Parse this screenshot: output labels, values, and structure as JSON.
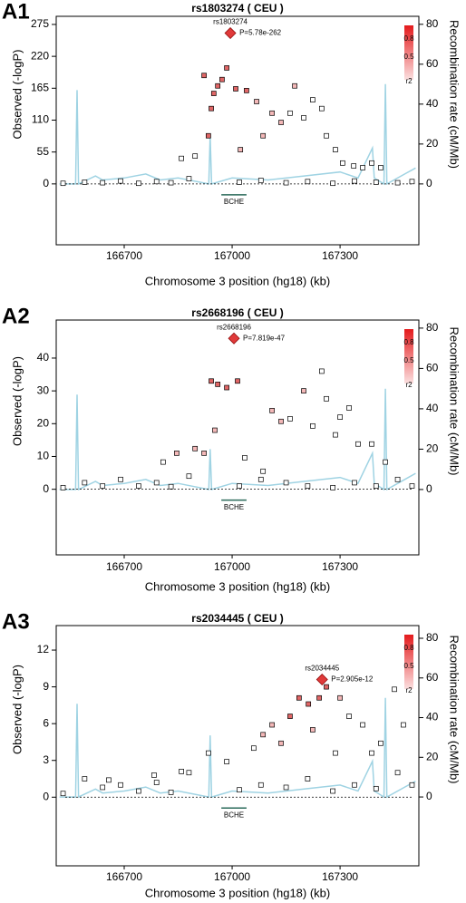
{
  "chart_data": [
    {
      "type": "scatter",
      "label": "A1",
      "title": "rs1803274 ( CEU )",
      "x_label": "Chromosome 3 position (hg18) (kb)",
      "y_label": "Observed (-logP)",
      "y2_label": "Recombination rate (cM/Mb)",
      "xlim": [
        166511,
        167519
      ],
      "xticks": [
        166700,
        167000,
        167300
      ],
      "ylim": [
        -105,
        289
      ],
      "yticks": [
        0,
        55,
        110,
        165,
        220,
        275
      ],
      "y2lim": [
        -30.5,
        84
      ],
      "y2ticks": [
        0,
        20,
        40,
        60,
        80
      ],
      "top_snp": {
        "name": "rs1803274",
        "p_label": "P=5.78e-262",
        "x": 166995,
        "y": 260,
        "color": "#e03a3a"
      },
      "gene": {
        "name": "BCHE",
        "start": 166970,
        "end": 167040
      },
      "legend": {
        "labels": [
          "0.8",
          "0.5",
          "r2"
        ],
        "colors": [
          "#e41a1c",
          "#fbe0e0"
        ]
      },
      "points": {
        "x": [
          166922,
          166934,
          166942,
          166949,
          166960,
          166972,
          166985,
          167010,
          167023,
          167040,
          167068,
          167086,
          167111,
          167136,
          167161,
          167174,
          167199,
          167224,
          167249,
          167262,
          167287,
          167307,
          167338,
          167363,
          167388,
          167413,
          166859,
          166897,
          166530,
          166590,
          166640,
          166690,
          166740,
          166790,
          166830,
          166880,
          167020,
          167080,
          167150,
          167210,
          167280,
          167340,
          167400,
          167460,
          167500
        ],
        "y": [
          187,
          83,
          130,
          156,
          169,
          180,
          200,
          164,
          59,
          161,
          142,
          83,
          122,
          106,
          122,
          169,
          114,
          145,
          130,
          83,
          59,
          36,
          31,
          28,
          36,
          28,
          44,
          48,
          1,
          3,
          2,
          5,
          1,
          4,
          2,
          9,
          3,
          6,
          2,
          4,
          1,
          5,
          3,
          2,
          4
        ],
        "colors": [
          "#e06666",
          "#e06666",
          "#e06666",
          "#e06666",
          "#e06666",
          "#e06666",
          "#e06666",
          "#e06666",
          "#f4b8b8",
          "#e06666",
          "#f4b8b8",
          "#f4b8b8",
          "#f4b8b8",
          "#f4b8b8",
          "#ffffff",
          "#f4b8b8",
          "#ffffff",
          "#ffffff",
          "#ffffff",
          "#ffffff",
          "#ffffff",
          "#ffffff",
          "#ffffff",
          "#ffffff",
          "#ffffff",
          "#ffffff",
          "#ffffff",
          "#ffffff",
          "#ffffff",
          "#ffffff",
          "#ffffff",
          "#ffffff",
          "#ffffff",
          "#ffffff",
          "#ffffff",
          "#ffffff",
          "#ffffff",
          "#ffffff",
          "#ffffff",
          "#ffffff",
          "#ffffff",
          "#ffffff",
          "#ffffff",
          "#ffffff",
          "#ffffff"
        ]
      },
      "recombination": {
        "axis": "y2",
        "color": "#9fd3e3",
        "x": [
          166520,
          166565,
          166569,
          166573,
          166620,
          166640,
          166700,
          166760,
          166800,
          166850,
          166935,
          166939,
          166943,
          167000,
          167100,
          167200,
          167300,
          167350,
          167390,
          167395,
          167422,
          167426,
          167430,
          167480,
          167510
        ],
        "values": [
          0,
          0,
          47,
          0,
          4,
          2,
          3,
          5,
          2,
          3,
          0,
          24,
          0,
          3,
          2,
          4,
          6,
          3,
          18,
          3,
          0,
          50,
          0,
          5,
          8
        ]
      }
    },
    {
      "type": "scatter",
      "label": "A2",
      "title": "rs2668196 ( CEU )",
      "x_label": "Chromosome 3 position (hg18) (kb)",
      "y_label": "Observed (-logP)",
      "y2_label": "Recombination rate (cM/Mb)",
      "xlim": [
        166511,
        167519
      ],
      "xticks": [
        166700,
        167000,
        167300
      ],
      "ylim": [
        -20,
        51.6
      ],
      "yticks": [
        0,
        10,
        20,
        30,
        40
      ],
      "y2lim": [
        -32.4,
        84
      ],
      "y2ticks": [
        0,
        20,
        40,
        60,
        80
      ],
      "top_snp": {
        "name": "rs2668196",
        "p_label": "P=7.819e-47",
        "x": 167005,
        "y": 46,
        "color": "#e03a3a"
      },
      "gene": {
        "name": "BCHE",
        "start": 166970,
        "end": 167040
      },
      "legend": {
        "labels": [
          "0.8",
          "0.5",
          "r2"
        ],
        "colors": [
          "#e41a1c",
          "#fbe0e0"
        ]
      },
      "points": {
        "x": [
          166942,
          166960,
          167015,
          166985,
          166952,
          166922,
          167111,
          167136,
          167161,
          167199,
          167249,
          167262,
          167300,
          167325,
          167350,
          167388,
          167426,
          166846,
          166897,
          167035,
          167086,
          167224,
          167287,
          166808,
          166530,
          166590,
          166640,
          166690,
          166740,
          166790,
          166830,
          166880,
          167020,
          167080,
          167150,
          167210,
          167280,
          167340,
          167400,
          167460,
          167500
        ],
        "y": [
          33,
          32,
          33,
          31,
          18,
          11,
          24,
          20.7,
          21.5,
          30,
          36,
          27.6,
          22,
          24.8,
          13.8,
          13.8,
          8.3,
          11,
          12.4,
          9.6,
          5.5,
          19.3,
          16.6,
          8.3,
          0.5,
          2,
          1,
          3,
          1,
          2,
          0.8,
          4,
          1,
          3,
          2,
          1,
          0.5,
          2,
          1,
          3,
          1
        ],
        "colors": [
          "#e06666",
          "#e06666",
          "#e06666",
          "#e06666",
          "#f4b8b8",
          "#f4b8b8",
          "#f4b8b8",
          "#f4b8b8",
          "#ffffff",
          "#f4b8b8",
          "#ffffff",
          "#ffffff",
          "#ffffff",
          "#ffffff",
          "#ffffff",
          "#ffffff",
          "#ffffff",
          "#f4b8b8",
          "#f4b8b8",
          "#ffffff",
          "#ffffff",
          "#ffffff",
          "#ffffff",
          "#ffffff",
          "#ffffff",
          "#ffffff",
          "#ffffff",
          "#ffffff",
          "#ffffff",
          "#ffffff",
          "#ffffff",
          "#ffffff",
          "#ffffff",
          "#ffffff",
          "#ffffff",
          "#ffffff",
          "#ffffff",
          "#ffffff",
          "#ffffff",
          "#ffffff",
          "#ffffff"
        ]
      },
      "recombination": {
        "axis": "y2",
        "color": "#9fd3e3",
        "x": [
          166520,
          166565,
          166569,
          166573,
          166620,
          166640,
          166700,
          166760,
          166800,
          166850,
          166935,
          166939,
          166943,
          167000,
          167100,
          167200,
          167300,
          167350,
          167390,
          167395,
          167422,
          167426,
          167430,
          167480,
          167510
        ],
        "values": [
          0,
          0,
          47,
          0,
          4,
          2,
          3,
          5,
          2,
          3,
          0,
          20,
          0,
          3,
          2,
          4,
          6,
          3,
          18,
          3,
          0,
          50,
          0,
          5,
          8
        ]
      }
    },
    {
      "type": "scatter",
      "label": "A3",
      "title": "rs2034445 ( CEU )",
      "x_label": "Chromosome 3 position (hg18) (kb)",
      "y_label": "Observed (-logP)",
      "y2_label": "Recombination rate (cM/Mb)",
      "xlim": [
        166511,
        167519
      ],
      "xticks": [
        166700,
        167000,
        167300
      ],
      "ylim": [
        -5.6,
        14
      ],
      "yticks": [
        0,
        3,
        6,
        9,
        12
      ],
      "y2lim": [
        -34.7,
        86.4
      ],
      "y2ticks": [
        0,
        20,
        40,
        60,
        80
      ],
      "top_snp": {
        "name": "rs2034445",
        "p_label": "P=2.905e-12",
        "x": 167250,
        "y": 9.6,
        "color": "#e03a3a"
      },
      "gene": {
        "name": "BCHE",
        "start": 166970,
        "end": 167040
      },
      "legend": {
        "labels": [
          "0.8",
          "0.5",
          "r2"
        ],
        "colors": [
          "#e41a1c",
          "#fbe0e0"
        ]
      },
      "points": {
        "x": [
          167262,
          167242,
          167212,
          167186,
          167161,
          167111,
          167086,
          167136,
          167224,
          167300,
          167325,
          167363,
          167388,
          167413,
          167451,
          167476,
          166985,
          166934,
          166859,
          166783,
          166657,
          167060,
          167287,
          166530,
          166590,
          166640,
          166690,
          166740,
          166790,
          166830,
          166880,
          167020,
          167080,
          167150,
          167210,
          167280,
          167340,
          167400,
          167460,
          167500
        ],
        "y": [
          9,
          8.1,
          7.6,
          8.1,
          6.6,
          5.9,
          5.1,
          4.4,
          5.5,
          8.1,
          6.6,
          5.9,
          3.6,
          4.4,
          8.8,
          5.9,
          2.9,
          3.6,
          2.1,
          1.8,
          1.4,
          4,
          3.6,
          0.3,
          1.5,
          0.8,
          1,
          0.5,
          1.2,
          0.4,
          2,
          0.6,
          1,
          0.8,
          1.5,
          0.5,
          1,
          0.7,
          2,
          1
        ],
        "colors": [
          "#e06666",
          "#e06666",
          "#e06666",
          "#e06666",
          "#e06666",
          "#f4b8b8",
          "#f4b8b8",
          "#f4b8b8",
          "#f4b8b8",
          "#f4b8b8",
          "#ffffff",
          "#ffffff",
          "#ffffff",
          "#ffffff",
          "#ffffff",
          "#ffffff",
          "#ffffff",
          "#ffffff",
          "#ffffff",
          "#ffffff",
          "#ffffff",
          "#ffffff",
          "#ffffff",
          "#ffffff",
          "#ffffff",
          "#ffffff",
          "#ffffff",
          "#ffffff",
          "#ffffff",
          "#ffffff",
          "#ffffff",
          "#ffffff",
          "#ffffff",
          "#ffffff",
          "#ffffff",
          "#ffffff",
          "#ffffff",
          "#ffffff",
          "#ffffff",
          "#ffffff"
        ]
      },
      "recombination": {
        "axis": "y2",
        "color": "#9fd3e3",
        "x": [
          166520,
          166565,
          166569,
          166573,
          166620,
          166640,
          166700,
          166760,
          166800,
          166850,
          166935,
          166939,
          166943,
          167000,
          167100,
          167200,
          167300,
          167350,
          167390,
          167395,
          167422,
          167426,
          167430,
          167480,
          167510
        ],
        "values": [
          0,
          0,
          47,
          0,
          4,
          2,
          3,
          5,
          2,
          3,
          0,
          31,
          0,
          3,
          2,
          4,
          6,
          3,
          18,
          3,
          0,
          50,
          0,
          5,
          8
        ]
      }
    }
  ]
}
